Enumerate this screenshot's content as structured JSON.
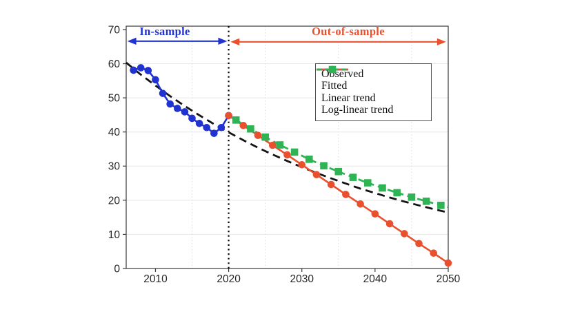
{
  "chart_data": {
    "type": "line",
    "title": "",
    "xlabel": "",
    "ylabel": "",
    "xlim": [
      2006,
      2050
    ],
    "ylim": [
      0,
      71
    ],
    "xticks": [
      2010,
      2020,
      2030,
      2040,
      2050
    ],
    "yticks": [
      0,
      10,
      20,
      30,
      40,
      50,
      60,
      70
    ],
    "x_minor_gridlines": [
      2015,
      2025,
      2035,
      2045
    ],
    "grid": "horizontal solid light gray at each 10; vertical dotted light gray at half-decades",
    "legend_position": "upper right inside plot",
    "forecast_divider": {
      "x": 2020,
      "style": "dotted",
      "color": "#000000"
    },
    "series": [
      {
        "name": "Observed",
        "color": "#2033D1",
        "line": "solid",
        "marker": "circle",
        "points": [
          [
            2007,
            58.1
          ],
          [
            2008,
            58.8
          ],
          [
            2009,
            58.0
          ],
          [
            2010,
            55.3
          ],
          [
            2011,
            51.3
          ],
          [
            2012,
            48.2
          ],
          [
            2013,
            46.9
          ],
          [
            2014,
            45.9
          ],
          [
            2015,
            44.0
          ],
          [
            2016,
            42.5
          ],
          [
            2017,
            41.3
          ],
          [
            2018,
            39.6
          ],
          [
            2019,
            41.3
          ],
          [
            2020,
            44.8
          ]
        ]
      },
      {
        "name": "Fitted",
        "color": "#141414",
        "line": "dashed",
        "marker": "none",
        "points": [
          [
            2006,
            60.3
          ],
          [
            2008,
            56.8
          ],
          [
            2010,
            53.6
          ],
          [
            2012,
            50.5
          ],
          [
            2014,
            47.6
          ],
          [
            2016,
            44.9
          ],
          [
            2018,
            42.3
          ],
          [
            2020,
            39.9
          ],
          [
            2022,
            37.6
          ],
          [
            2024,
            35.4
          ],
          [
            2026,
            33.4
          ],
          [
            2028,
            31.5
          ],
          [
            2030,
            29.7
          ],
          [
            2032,
            28.0
          ],
          [
            2034,
            26.4
          ],
          [
            2036,
            24.9
          ],
          [
            2038,
            23.4
          ],
          [
            2040,
            22.1
          ],
          [
            2042,
            20.8
          ],
          [
            2044,
            19.6
          ],
          [
            2046,
            18.5
          ],
          [
            2048,
            17.4
          ],
          [
            2050,
            16.4
          ]
        ]
      },
      {
        "name": "Linear trend",
        "color": "#E8502E",
        "line": "solid",
        "marker": "circle",
        "points": [
          [
            2020,
            44.8
          ],
          [
            2022,
            41.9
          ],
          [
            2024,
            39.0
          ],
          [
            2026,
            36.1
          ],
          [
            2028,
            33.3
          ],
          [
            2030,
            30.4
          ],
          [
            2032,
            27.5
          ],
          [
            2034,
            24.6
          ],
          [
            2036,
            21.7
          ],
          [
            2038,
            18.9
          ],
          [
            2040,
            16.0
          ],
          [
            2042,
            13.1
          ],
          [
            2044,
            10.2
          ],
          [
            2046,
            7.3
          ],
          [
            2048,
            4.5
          ],
          [
            2050,
            1.6
          ]
        ]
      },
      {
        "name": "Log-linear trend",
        "color": "#2EB455",
        "line": "dashed",
        "marker": "square",
        "points": [
          [
            2020,
            44.8
          ],
          [
            2021,
            43.5
          ],
          [
            2023,
            40.9
          ],
          [
            2025,
            38.5
          ],
          [
            2027,
            36.2
          ],
          [
            2029,
            34.1
          ],
          [
            2031,
            32.0
          ],
          [
            2033,
            30.1
          ],
          [
            2035,
            28.4
          ],
          [
            2037,
            26.7
          ],
          [
            2039,
            25.1
          ],
          [
            2041,
            23.6
          ],
          [
            2043,
            22.2
          ],
          [
            2045,
            20.9
          ],
          [
            2047,
            19.7
          ],
          [
            2049,
            18.5
          ],
          [
            2050,
            18.0
          ]
        ],
        "marker_points": [
          [
            2021,
            43.5
          ],
          [
            2023,
            40.9
          ],
          [
            2025,
            38.5
          ],
          [
            2027,
            36.2
          ],
          [
            2029,
            34.1
          ],
          [
            2031,
            32.0
          ],
          [
            2033,
            30.1
          ],
          [
            2035,
            28.4
          ],
          [
            2037,
            26.7
          ],
          [
            2039,
            25.1
          ],
          [
            2041,
            23.6
          ],
          [
            2043,
            22.2
          ],
          [
            2045,
            20.9
          ],
          [
            2047,
            19.7
          ],
          [
            2049,
            18.5
          ]
        ]
      }
    ],
    "annotations": [
      {
        "id": "in-sample",
        "label": "In-sample",
        "color": "#2033D1",
        "arrow_from_x": 2006.15,
        "arrow_to_x": 2019.8,
        "arrow_y": 66.6,
        "label_x": 2011.3,
        "label_y": 69.3
      },
      {
        "id": "out-of-sample",
        "label": "Out-of-sample",
        "color": "#E8502E",
        "arrow_from_x": 2020.25,
        "arrow_to_x": 2049.7,
        "arrow_y": 66.4,
        "label_x": 2036.4,
        "label_y": 69.3
      }
    ],
    "style": {
      "background": "#ffffff",
      "spine_color": "#3a3a3a",
      "tick_label_color": "#262626",
      "grid_color": "#e7e7e7",
      "minor_grid_color": "#d9d9d9"
    }
  }
}
